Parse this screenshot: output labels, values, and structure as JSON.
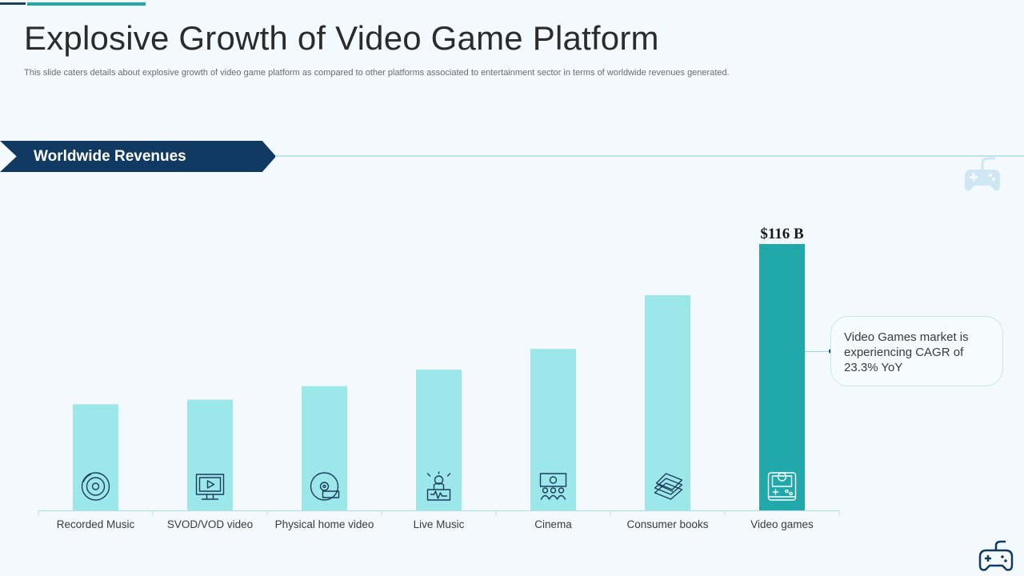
{
  "slide": {
    "title": "Explosive Growth of Video Game Platform",
    "subtitle": "This slide caters details about explosive growth of video game platform as compared to other platforms associated to entertainment sector in terms of worldwide revenues generated.",
    "section_label": "Worldwide Revenues",
    "callout_text": "Video Games market is experiencing CAGR of 23.3% YoY"
  },
  "colors": {
    "navy": "#103a61",
    "bar_light": "#9ce7ea",
    "bar_highlight": "#21a8aa",
    "icon_stroke": "#1d3d5c"
  },
  "chart_data": {
    "type": "bar",
    "title": "",
    "xlabel": "",
    "ylabel": "",
    "categories": [
      "Recorded Music",
      "SVOD/VOD video",
      "Physical home video",
      "Live Music",
      "Cinema",
      "Consumer books",
      "Video games"
    ],
    "values": [
      46.2,
      48.2,
      54.1,
      61.3,
      70.3,
      93.7,
      116
    ],
    "ylim": [
      0,
      116
    ],
    "highlight_index": 6,
    "data_labels": [
      {
        "index": 6,
        "text": "$116 B"
      }
    ],
    "icons": [
      "vinyl-record-icon",
      "tv-video-icon",
      "dvd-disc-icon",
      "dj-music-icon",
      "cinema-audience-icon",
      "books-stack-icon",
      "game-console-icon"
    ],
    "grid": false,
    "legend": "none"
  }
}
